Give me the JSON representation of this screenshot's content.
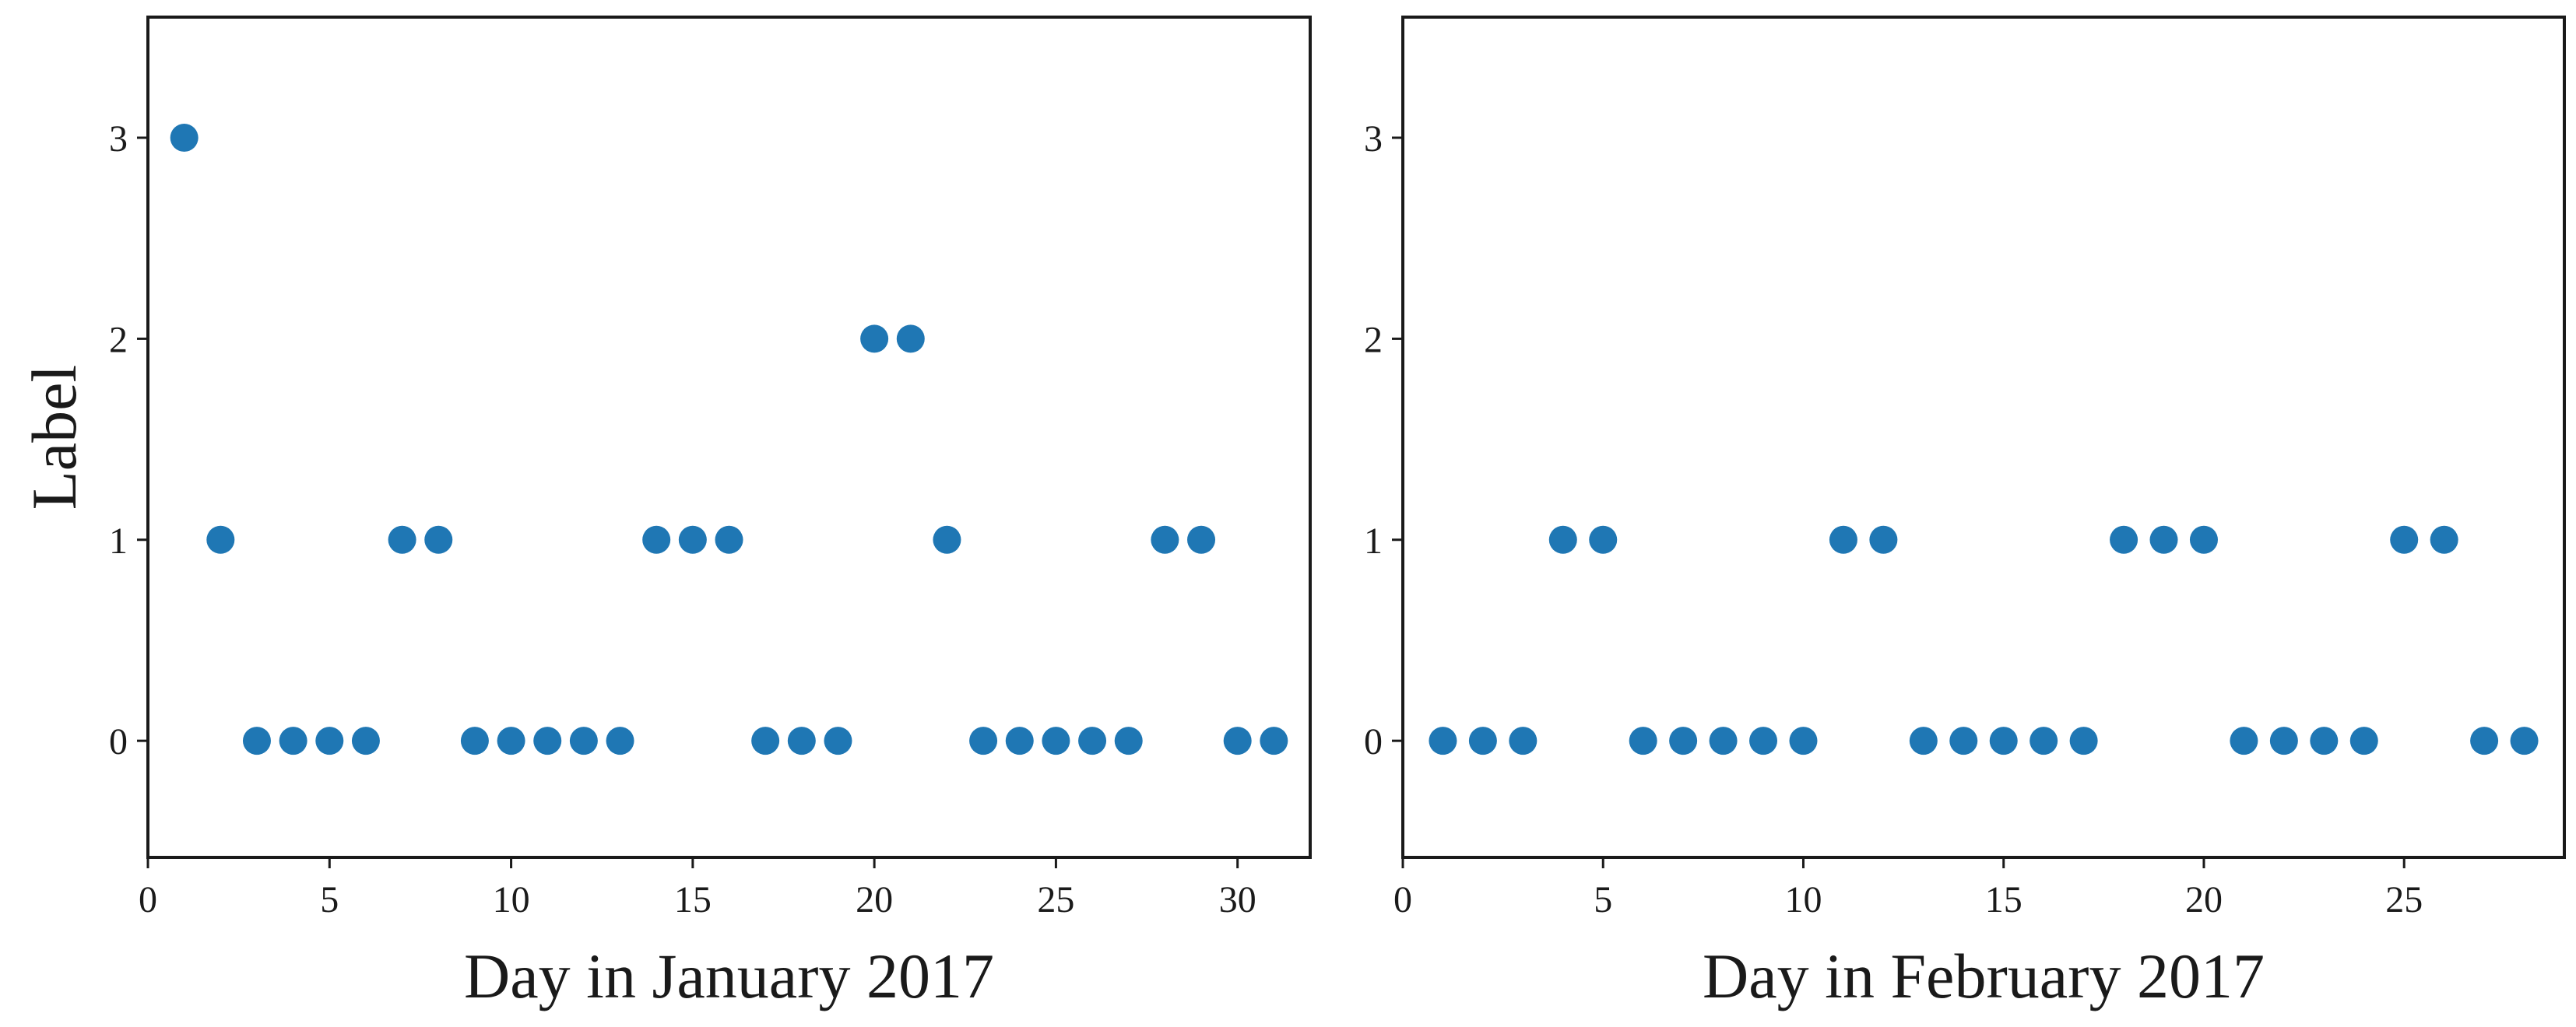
{
  "chart_data": [
    {
      "type": "scatter",
      "xlabel": "Day in January 2017",
      "ylabel": "Label",
      "xlim": [
        0,
        32
      ],
      "ylim": [
        -0.58,
        3.6
      ],
      "xticks": [
        0,
        5,
        10,
        15,
        20,
        25,
        30
      ],
      "yticks": [
        0,
        1,
        2,
        3
      ],
      "xtick_labels": [
        "0",
        "5",
        "10",
        "15",
        "20",
        "25",
        "30"
      ],
      "ytick_labels": [
        "0",
        "1",
        "2",
        "3"
      ],
      "grid": false,
      "marker_color": "#1f77b4",
      "x": [
        1,
        2,
        3,
        4,
        5,
        6,
        7,
        8,
        9,
        10,
        11,
        12,
        13,
        14,
        15,
        16,
        17,
        18,
        19,
        20,
        21,
        22,
        23,
        24,
        25,
        26,
        27,
        28,
        29,
        30,
        31
      ],
      "y": [
        3,
        1,
        0,
        0,
        0,
        0,
        1,
        1,
        0,
        0,
        0,
        0,
        0,
        1,
        1,
        1,
        0,
        0,
        0,
        2,
        2,
        1,
        0,
        0,
        0,
        0,
        0,
        1,
        1,
        0,
        0
      ]
    },
    {
      "type": "scatter",
      "xlabel": "Day in February 2017",
      "ylabel": "",
      "xlim": [
        0,
        29
      ],
      "ylim": [
        -0.58,
        3.6
      ],
      "xticks": [
        0,
        5,
        10,
        15,
        20,
        25
      ],
      "yticks": [
        0,
        1,
        2,
        3
      ],
      "xtick_labels": [
        "0",
        "5",
        "10",
        "15",
        "20",
        "25"
      ],
      "ytick_labels": [
        "0",
        "1",
        "2",
        "3"
      ],
      "grid": false,
      "marker_color": "#1f77b4",
      "x": [
        1,
        2,
        3,
        4,
        5,
        6,
        7,
        8,
        9,
        10,
        11,
        12,
        13,
        14,
        15,
        16,
        17,
        18,
        19,
        20,
        21,
        22,
        23,
        24,
        25,
        26,
        27,
        28
      ],
      "y": [
        0,
        0,
        0,
        1,
        1,
        0,
        0,
        0,
        0,
        0,
        1,
        1,
        0,
        0,
        0,
        0,
        0,
        1,
        1,
        1,
        0,
        0,
        0,
        0,
        1,
        1,
        0,
        0
      ]
    }
  ]
}
